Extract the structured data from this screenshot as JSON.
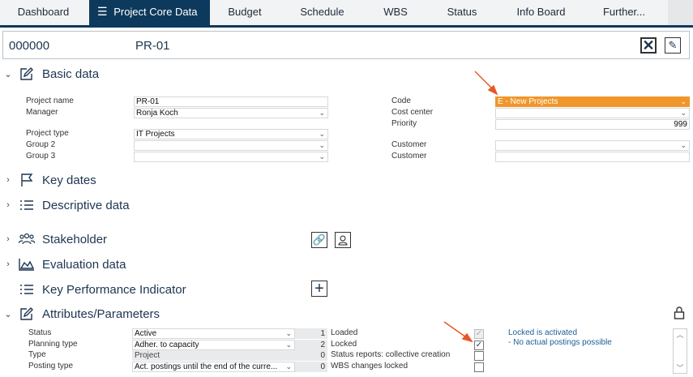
{
  "tabs": [
    {
      "label": "Dashboard"
    },
    {
      "label": "Project Core Data",
      "active": true
    },
    {
      "label": "Budget"
    },
    {
      "label": "Schedule"
    },
    {
      "label": "WBS"
    },
    {
      "label": "Status"
    },
    {
      "label": "Info Board"
    },
    {
      "label": "Further..."
    }
  ],
  "header": {
    "number": "000000",
    "name": "PR-01"
  },
  "sections": {
    "basic": "Basic data",
    "dates": "Key dates",
    "desc": "Descriptive data",
    "stake": "Stakeholder",
    "eval": "Evaluation data",
    "kpi": "Key Performance Indicator",
    "attr": "Attributes/Parameters"
  },
  "basic": {
    "project_name_label": "Project name",
    "project_name": "PR-01",
    "manager_label": "Manager",
    "manager": "Ronja Koch",
    "project_type_label": "Project type",
    "project_type": "IT Projects",
    "group2_label": "Group 2",
    "group2": "",
    "group3_label": "Group 3",
    "group3": "",
    "code_label": "Code",
    "code": "E - New Projects",
    "cost_center_label": "Cost center",
    "cost_center": "",
    "priority_label": "Priority",
    "priority": "999",
    "customer1_label": "Customer",
    "customer1": "",
    "customer2_label": "Customer",
    "customer2": ""
  },
  "attributes": {
    "rows": [
      {
        "label": "Status",
        "value": "Active",
        "num": "1",
        "flag": "Loaded",
        "checked": true,
        "disabled": true
      },
      {
        "label": "Planning type",
        "value": "Adher. to capacity",
        "num": "2",
        "flag": "Locked",
        "checked": true
      },
      {
        "label": "Type",
        "value": "Project",
        "num": "0",
        "flag": "Status reports: collective creation",
        "checked": false
      },
      {
        "label": "Posting type",
        "value": "Act. postings until the end of the curre...",
        "num": "0",
        "flag": "WBS changes locked",
        "checked": false
      }
    ],
    "info_title": "Locked is activated",
    "info_text": "- No actual postings possible"
  },
  "colors": {
    "accent": "#0d3a5c",
    "code_highlight": "#f0962a",
    "arrow": "#e8572a"
  }
}
